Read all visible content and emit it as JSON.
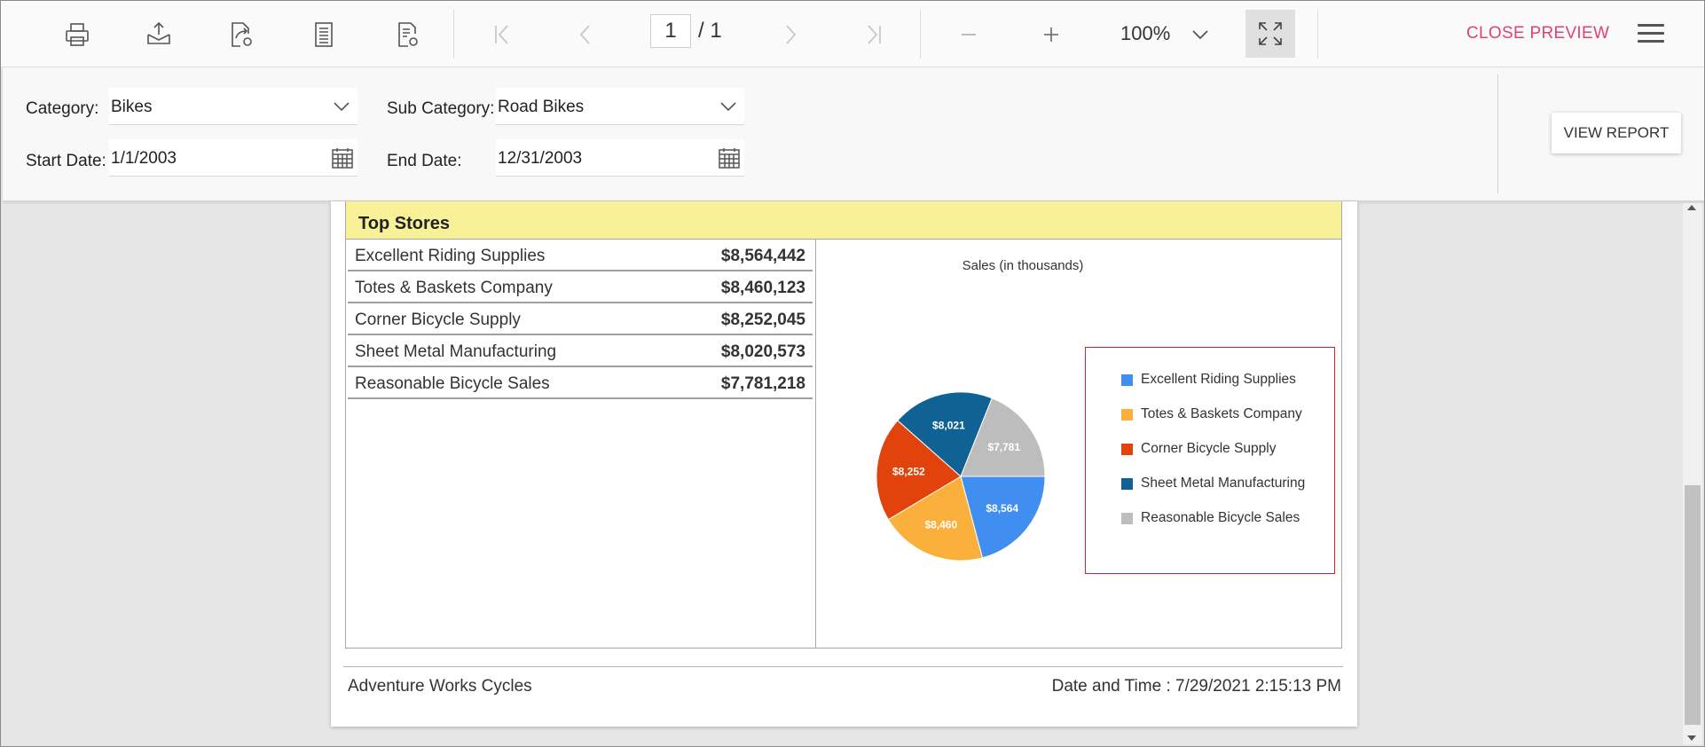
{
  "toolbar": {
    "icons": [
      "print-icon",
      "export-icon",
      "send-share-icon",
      "page-setup-icon",
      "page-settings-icon"
    ],
    "page_current": "1",
    "page_total": "/ 1",
    "zoom": "100%",
    "close_preview": "CLOSE PREVIEW"
  },
  "params": {
    "category_label": "Category:",
    "category_value": "Bikes",
    "subcategory_label": "Sub Category:",
    "subcategory_value": "Road Bikes",
    "start_label": "Start Date:",
    "start_value": "1/1/2003",
    "end_label": "End Date:",
    "end_value": "12/31/2003",
    "view_report": "VIEW REPORT"
  },
  "report": {
    "section_title": "Top Stores",
    "stores": [
      {
        "name": "Excellent Riding Supplies",
        "amount": "$8,564,442"
      },
      {
        "name": "Totes & Baskets Company",
        "amount": "$8,460,123"
      },
      {
        "name": "Corner Bicycle Supply",
        "amount": "$8,252,045"
      },
      {
        "name": "Sheet Metal Manufacturing",
        "amount": "$8,020,573"
      },
      {
        "name": "Reasonable Bicycle Sales",
        "amount": "$7,781,218"
      }
    ],
    "footer_left": "Adventure Works Cycles",
    "footer_right": "Date and Time : 7/29/2021 2:15:13 PM"
  },
  "chart_data": {
    "type": "pie",
    "title": "Sales (in thousands)",
    "categories": [
      "Excellent Riding Supplies",
      "Totes & Baskets Company",
      "Corner Bicycle Supply",
      "Sheet Metal Manufacturing",
      "Reasonable Bicycle Sales"
    ],
    "values": [
      8564,
      8460,
      8252,
      8021,
      7781
    ],
    "data_labels": [
      "$8,564",
      "$8,460",
      "$8,252",
      "$8,021",
      "$7,781"
    ],
    "colors": [
      "#3f8ef0",
      "#fbb03b",
      "#e2420b",
      "#0f6293",
      "#bdbdbd"
    ],
    "legend_position": "right"
  },
  "colors": {
    "accent": "#e0436b",
    "header_band": "#f8f198",
    "legend_border": "#d81f26"
  }
}
